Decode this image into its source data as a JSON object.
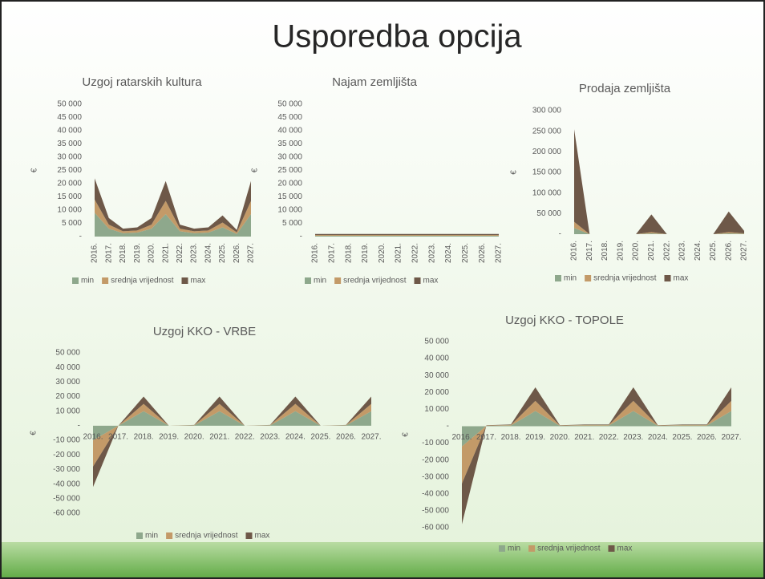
{
  "title": "Usporedba opcija",
  "chart_data": [
    {
      "type": "area",
      "stacked": true,
      "title": "Uzgoj ratarskih kultura",
      "y_label": "€",
      "categories": [
        "2016.",
        "2017.",
        "2018.",
        "2019.",
        "2020.",
        "2021.",
        "2022.",
        "2023.",
        "2024.",
        "2025.",
        "2026.",
        "2027."
      ],
      "series": [
        {
          "name": "min",
          "color": "#8ea88c",
          "values": [
            9000,
            3000,
            1300,
            1500,
            3000,
            8500,
            2000,
            1300,
            1500,
            3500,
            1000,
            8500
          ]
        },
        {
          "name": "srednja vrijednost",
          "color": "#c39a68",
          "values": [
            5000,
            1500,
            700,
            800,
            1500,
            5000,
            1000,
            700,
            800,
            1800,
            600,
            5000
          ]
        },
        {
          "name": "max",
          "color": "#6e5848",
          "values": [
            8000,
            2500,
            1000,
            1200,
            2500,
            7500,
            1500,
            1000,
            1200,
            2700,
            900,
            7500
          ]
        }
      ],
      "ylim": [
        0,
        50000
      ],
      "yticks": [
        {
          "value": 0,
          "label": "-"
        },
        {
          "value": 5000,
          "label": "5 000"
        },
        {
          "value": 10000,
          "label": "10 000"
        },
        {
          "value": 15000,
          "label": "15 000"
        },
        {
          "value": 20000,
          "label": "20 000"
        },
        {
          "value": 25000,
          "label": "25 000"
        },
        {
          "value": 30000,
          "label": "30 000"
        },
        {
          "value": 35000,
          "label": "35 000"
        },
        {
          "value": 40000,
          "label": "40 000"
        },
        {
          "value": 45000,
          "label": "45 000"
        },
        {
          "value": 50000,
          "label": "50 000"
        }
      ],
      "grid": false,
      "legend": "bottom"
    },
    {
      "type": "area",
      "stacked": true,
      "title": "Najam zemljišta",
      "y_label": "€",
      "categories": [
        "2016.",
        "2017.",
        "2018.",
        "2019.",
        "2020.",
        "2021.",
        "2022.",
        "2023.",
        "2024.",
        "2025.",
        "2026.",
        "2027."
      ],
      "series": [
        {
          "name": "min",
          "color": "#8ea88c",
          "values": [
            300,
            300,
            300,
            300,
            300,
            300,
            300,
            300,
            300,
            300,
            300,
            300
          ]
        },
        {
          "name": "srednja vrijednost",
          "color": "#c39a68",
          "values": [
            300,
            300,
            300,
            300,
            300,
            300,
            300,
            300,
            300,
            300,
            300,
            300
          ]
        },
        {
          "name": "max",
          "color": "#6e5848",
          "values": [
            400,
            400,
            400,
            400,
            400,
            400,
            400,
            400,
            400,
            400,
            400,
            400
          ]
        }
      ],
      "ylim": [
        0,
        50000
      ],
      "yticks": [
        {
          "value": 0,
          "label": "-"
        },
        {
          "value": 5000,
          "label": "5 000"
        },
        {
          "value": 10000,
          "label": "10 000"
        },
        {
          "value": 15000,
          "label": "15 000"
        },
        {
          "value": 20000,
          "label": "20 000"
        },
        {
          "value": 25000,
          "label": "25 000"
        },
        {
          "value": 30000,
          "label": "30 000"
        },
        {
          "value": 35000,
          "label": "35 000"
        },
        {
          "value": 40000,
          "label": "40 000"
        },
        {
          "value": 45000,
          "label": "45 000"
        },
        {
          "value": 50000,
          "label": "50 000"
        }
      ],
      "grid": false,
      "legend": "bottom"
    },
    {
      "type": "area",
      "stacked": true,
      "title": "Prodaja zemljišta",
      "y_label": "€",
      "categories": [
        "2016.",
        "2017.",
        "2018.",
        "2019.",
        "2020.",
        "2021.",
        "2022.",
        "2023.",
        "2024.",
        "2025.",
        "2026.",
        "2027."
      ],
      "series": [
        {
          "name": "min",
          "color": "#8ea88c",
          "values": [
            15000,
            0,
            0,
            0,
            0,
            2000,
            0,
            0,
            0,
            0,
            2000,
            1000
          ]
        },
        {
          "name": "srednja vrijednost",
          "color": "#c39a68",
          "values": [
            15000,
            0,
            0,
            0,
            0,
            3000,
            0,
            0,
            0,
            0,
            3000,
            1000
          ]
        },
        {
          "name": "max",
          "color": "#6e5848",
          "values": [
            225000,
            0,
            0,
            0,
            0,
            43000,
            0,
            0,
            0,
            0,
            50000,
            6000
          ]
        }
      ],
      "ylim": [
        0,
        300000
      ],
      "yticks": [
        {
          "value": 0,
          "label": "-"
        },
        {
          "value": 50000,
          "label": "50 000"
        },
        {
          "value": 100000,
          "label": "100 000"
        },
        {
          "value": 150000,
          "label": "150 000"
        },
        {
          "value": 200000,
          "label": "200 000"
        },
        {
          "value": 250000,
          "label": "250 000"
        },
        {
          "value": 300000,
          "label": "300 000"
        }
      ],
      "grid": false,
      "legend": "bottom"
    },
    {
      "type": "area",
      "stacked": true,
      "title": "Uzgoj KKO - VRBE",
      "y_label": "€",
      "categories": [
        "2016.",
        "2017.",
        "2018.",
        "2019.",
        "2020.",
        "2021.",
        "2022.",
        "2023.",
        "2024.",
        "2025.",
        "2026.",
        "2027."
      ],
      "series": [
        {
          "name": "min",
          "color": "#8ea88c",
          "values": [
            -10000,
            0,
            10000,
            0,
            200,
            10000,
            0,
            200,
            10000,
            0,
            200,
            10000
          ]
        },
        {
          "name": "srednja vrijednost",
          "color": "#c39a68",
          "values": [
            -18000,
            0,
            5000,
            0,
            200,
            5000,
            0,
            200,
            5000,
            0,
            200,
            5000
          ]
        },
        {
          "name": "max",
          "color": "#6e5848",
          "values": [
            -14000,
            0,
            5000,
            0,
            200,
            5000,
            0,
            200,
            5000,
            0,
            200,
            5000
          ]
        }
      ],
      "ylim": [
        -60000,
        50000
      ],
      "yticks": [
        {
          "value": -60000,
          "label": "-60 000"
        },
        {
          "value": -50000,
          "label": "-50 000"
        },
        {
          "value": -40000,
          "label": "-40 000"
        },
        {
          "value": -30000,
          "label": "-30 000"
        },
        {
          "value": -20000,
          "label": "-20 000"
        },
        {
          "value": -10000,
          "label": "-10 000"
        },
        {
          "value": 0,
          "label": "-"
        },
        {
          "value": 10000,
          "label": "10 000"
        },
        {
          "value": 20000,
          "label": "20 000"
        },
        {
          "value": 30000,
          "label": "30 000"
        },
        {
          "value": 40000,
          "label": "40 000"
        },
        {
          "value": 50000,
          "label": "50 000"
        }
      ],
      "grid": false,
      "legend": "bottom"
    },
    {
      "type": "area",
      "stacked": true,
      "title": "Uzgoj KKO - TOPOLE",
      "y_label": "€",
      "categories": [
        "2016.",
        "2017.",
        "2018.",
        "2019.",
        "2020.",
        "2021.",
        "2022.",
        "2023.",
        "2024.",
        "2025.",
        "2026.",
        "2027."
      ],
      "series": [
        {
          "name": "min",
          "color": "#8ea88c",
          "values": [
            -12000,
            200,
            400,
            9000,
            200,
            400,
            400,
            9000,
            200,
            400,
            400,
            9000
          ]
        },
        {
          "name": "srednja vrijednost",
          "color": "#c39a68",
          "values": [
            -22000,
            200,
            300,
            6000,
            200,
            300,
            300,
            6000,
            200,
            300,
            300,
            6000
          ]
        },
        {
          "name": "max",
          "color": "#6e5848",
          "values": [
            -24000,
            200,
            300,
            8000,
            200,
            300,
            300,
            8000,
            200,
            300,
            300,
            8000
          ]
        }
      ],
      "ylim": [
        -60000,
        50000
      ],
      "yticks": [
        {
          "value": -60000,
          "label": "-60 000"
        },
        {
          "value": -50000,
          "label": "-50 000"
        },
        {
          "value": -40000,
          "label": "-40 000"
        },
        {
          "value": -30000,
          "label": "-30 000"
        },
        {
          "value": -20000,
          "label": "-20 000"
        },
        {
          "value": -10000,
          "label": "-10 000"
        },
        {
          "value": 0,
          "label": "-"
        },
        {
          "value": 10000,
          "label": "10 000"
        },
        {
          "value": 20000,
          "label": "20 000"
        },
        {
          "value": 30000,
          "label": "30 000"
        },
        {
          "value": 40000,
          "label": "40 000"
        },
        {
          "value": 50000,
          "label": "50 000"
        }
      ],
      "grid": false,
      "legend": "bottom"
    }
  ]
}
